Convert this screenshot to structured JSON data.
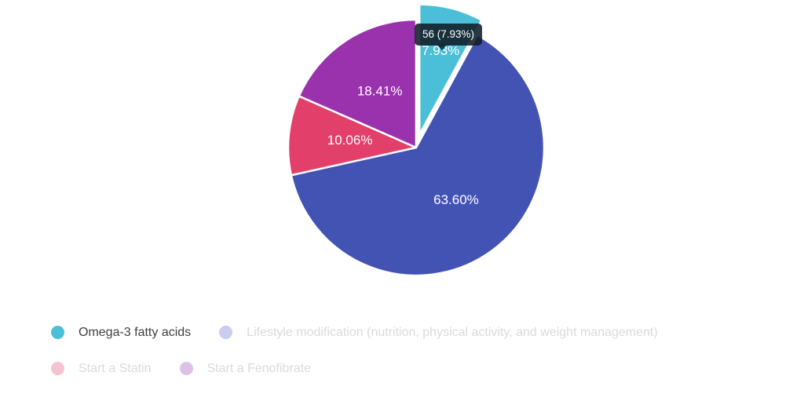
{
  "chart_data": {
    "type": "pie",
    "title": "",
    "legend_position": "bottom",
    "tooltip_text": "56 (7.93%)",
    "slices": [
      {
        "label": "Omega-3 fatty acids",
        "pct": 7.93,
        "pct_label": "7.93%",
        "value": 56,
        "color": "#4BBFD8",
        "selected": true
      },
      {
        "label": "Lifestyle modification (nutrition, physical activity, and weight management)",
        "pct": 63.6,
        "pct_label": "63.60%",
        "color": "#4353B4",
        "selected": false
      },
      {
        "label": "Start a Statin",
        "pct": 10.06,
        "pct_label": "10.06%",
        "color": "#E23F6B",
        "selected": false
      },
      {
        "label": "Start a Fenofibrate",
        "pct": 18.41,
        "pct_label": "18.41%",
        "color": "#9A32AE",
        "selected": false
      }
    ]
  },
  "tooltip": {
    "text": "56 (7.93%)"
  },
  "legend": {
    "items": [
      {
        "label": "Omega-3 fatty acids",
        "dot_color": "#4BBFD8",
        "active": true
      },
      {
        "label": "Lifestyle modification (nutrition, physical activity, and weight management)",
        "dot_color": "#C9CCEC",
        "active": false
      },
      {
        "label": "Start a Statin",
        "dot_color": "#F5C2D0",
        "active": false
      },
      {
        "label": "Start a Fenofibrate",
        "dot_color": "#DCC3E5",
        "active": false
      }
    ],
    "active_text_color": "#3F3F3F",
    "muted_text_color": "#DADADA"
  }
}
